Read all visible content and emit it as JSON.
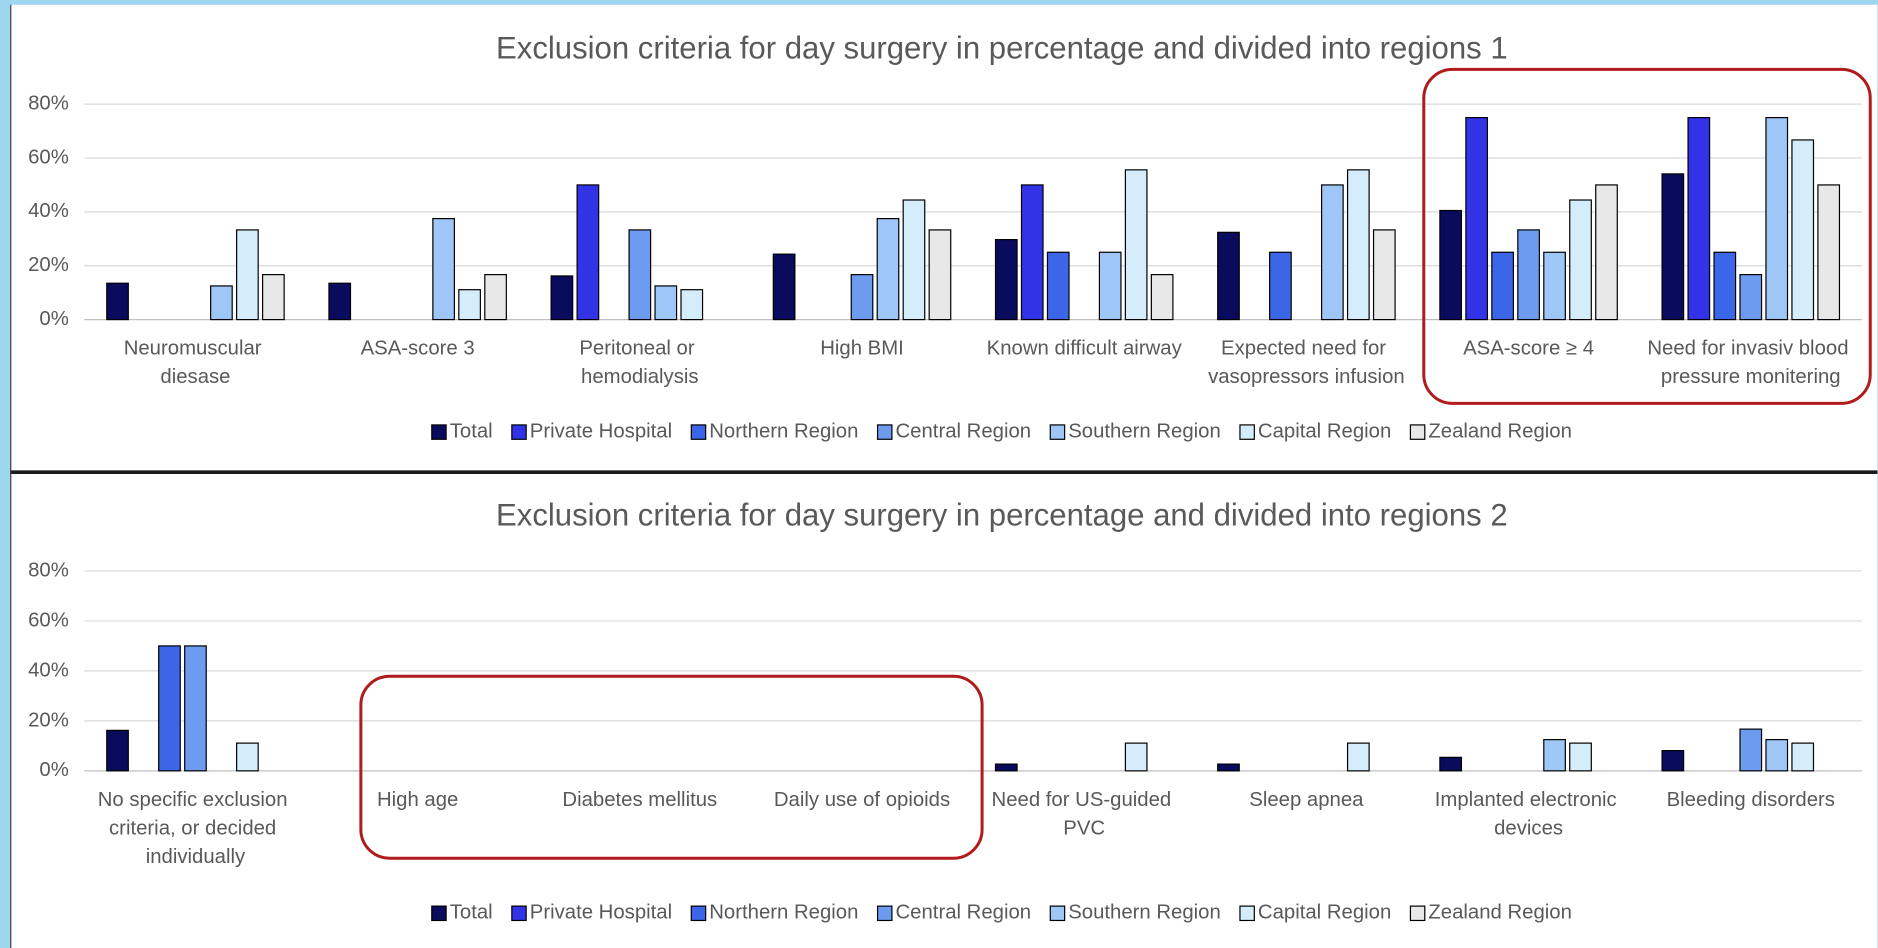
{
  "chart_data": [
    {
      "type": "bar",
      "title": "Exclusion criteria for day surgery in percentage and divided into regions 1",
      "categories": [
        "Neuromuscular diesase",
        "ASA-score 3",
        "Peritoneal or hemodialysis",
        "High BMI",
        "Known difficult airway",
        "Expected need for vasopressors infusion",
        "ASA-score ≥ 4",
        "Need for invasiv blood pressure monitering"
      ],
      "series": [
        {
          "name": "Total",
          "color": "#0b0b5e",
          "values": [
            13.5,
            13.5,
            16.2,
            24.3,
            29.7,
            32.4,
            40.5,
            54.1
          ]
        },
        {
          "name": "Private Hospital",
          "color": "#3232e6",
          "values": [
            0,
            0,
            50,
            0,
            50,
            0,
            75,
            75
          ]
        },
        {
          "name": "Northern Region",
          "color": "#3b66e8",
          "values": [
            0,
            0,
            0,
            0,
            25,
            25,
            25,
            25
          ]
        },
        {
          "name": "Central Region",
          "color": "#6c9bf0",
          "values": [
            0,
            0,
            33.3,
            16.7,
            0,
            0,
            33.3,
            16.7
          ]
        },
        {
          "name": "Southern Region",
          "color": "#9ec6f6",
          "values": [
            12.5,
            37.5,
            12.5,
            37.5,
            25,
            50,
            25,
            75
          ]
        },
        {
          "name": "Capital Region",
          "color": "#d5edfb",
          "values": [
            33.3,
            11.1,
            11.1,
            44.4,
            55.6,
            55.6,
            44.4,
            66.7
          ]
        },
        {
          "name": "Zealand Region",
          "color": "#e8e8e8",
          "values": [
            16.7,
            16.7,
            0,
            33.3,
            16.7,
            33.3,
            50,
            50
          ]
        }
      ],
      "ylim": [
        0,
        80
      ],
      "yticks": [
        {
          "value": 0,
          "label": "0%"
        },
        {
          "value": 20,
          "label": "20%"
        },
        {
          "value": 40,
          "label": "40%"
        },
        {
          "value": 60,
          "label": "60%"
        },
        {
          "value": 80,
          "label": "80%"
        }
      ],
      "grid": true
    },
    {
      "type": "bar",
      "title": "Exclusion criteria for day surgery in percentage and divided into regions 2",
      "categories": [
        "No specific exclusion criteria, or decided individually",
        "High age",
        "Diabetes mellitus",
        "Daily use of opioids",
        "Need for US-guided PVC",
        "Sleep apnea",
        "Implanted electronic devices",
        "Bleeding disorders"
      ],
      "series": [
        {
          "name": "Total",
          "color": "#0b0b5e",
          "values": [
            16.2,
            0,
            0,
            0,
            2.7,
            2.7,
            5.4,
            8.1
          ]
        },
        {
          "name": "Private Hospital",
          "color": "#3232e6",
          "values": [
            0,
            0,
            0,
            0,
            0,
            0,
            0,
            0
          ]
        },
        {
          "name": "Northern Region",
          "color": "#3b66e8",
          "values": [
            50,
            0,
            0,
            0,
            0,
            0,
            0,
            0
          ]
        },
        {
          "name": "Central Region",
          "color": "#6c9bf0",
          "values": [
            50,
            0,
            0,
            0,
            0,
            0,
            0,
            16.7
          ]
        },
        {
          "name": "Southern Region",
          "color": "#9ec6f6",
          "values": [
            0,
            0,
            0,
            0,
            0,
            0,
            12.5,
            12.5
          ]
        },
        {
          "name": "Capital Region",
          "color": "#d5edfb",
          "values": [
            11.1,
            0,
            0,
            0,
            11.1,
            11.1,
            11.1,
            11.1
          ]
        },
        {
          "name": "Zealand Region",
          "color": "#e8e8e8",
          "values": [
            0,
            0,
            0,
            0,
            0,
            0,
            0,
            0
          ]
        }
      ],
      "ylim": [
        0,
        80
      ],
      "yticks": [
        {
          "value": 0,
          "label": "0%"
        },
        {
          "value": 20,
          "label": "20%"
        },
        {
          "value": 40,
          "label": "40%"
        },
        {
          "value": 60,
          "label": "60%"
        },
        {
          "value": 80,
          "label": "80%"
        }
      ],
      "grid": true
    }
  ]
}
